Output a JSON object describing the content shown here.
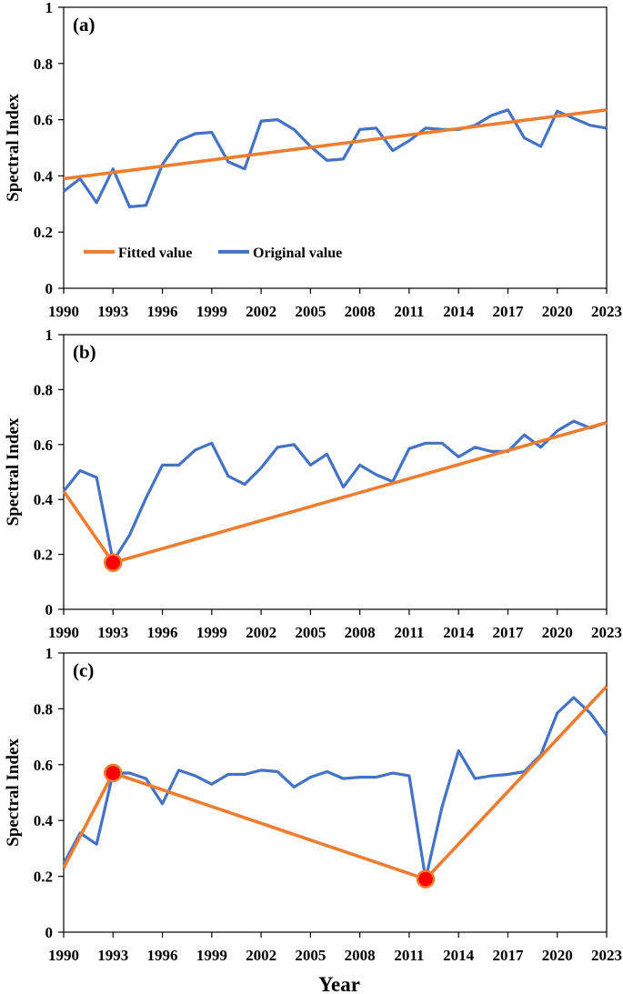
{
  "figure": {
    "x_axis_title": "Year"
  },
  "legend": {
    "fitted_label": "Fitted value",
    "original_label": "Original value"
  },
  "colors": {
    "fitted": "#ED7D31",
    "original": "#4472C4",
    "breakpoint_fill": "#FF0000",
    "breakpoint_stroke": "#ED7D31"
  },
  "chart_data": [
    {
      "type": "line",
      "panel_label": "(a)",
      "ylabel": "Spectral Index",
      "xlabel": "",
      "ylim": [
        0,
        1
      ],
      "yticks": [
        0,
        0.2,
        0.4,
        0.6,
        0.8,
        1
      ],
      "xlim": [
        1990,
        2023
      ],
      "xticks": [
        1990,
        1993,
        1996,
        1999,
        2002,
        2005,
        2008,
        2011,
        2014,
        2017,
        2020,
        2023
      ],
      "legend": true,
      "series": [
        {
          "name": "Original value",
          "x": [
            1990,
            1991,
            1992,
            1993,
            1994,
            1995,
            1996,
            1997,
            1998,
            1999,
            2000,
            2001,
            2002,
            2003,
            2004,
            2005,
            2006,
            2007,
            2008,
            2009,
            2010,
            2011,
            2012,
            2013,
            2014,
            2015,
            2016,
            2017,
            2018,
            2019,
            2020,
            2021,
            2022,
            2023
          ],
          "y": [
            0.345,
            0.39,
            0.305,
            0.425,
            0.29,
            0.295,
            0.44,
            0.525,
            0.55,
            0.555,
            0.45,
            0.425,
            0.595,
            0.6,
            0.565,
            0.505,
            0.455,
            0.46,
            0.565,
            0.57,
            0.49,
            0.525,
            0.57,
            0.565,
            0.565,
            0.58,
            0.615,
            0.635,
            0.535,
            0.505,
            0.63,
            0.605,
            0.58,
            0.57
          ]
        },
        {
          "name": "Fitted value",
          "x": [
            1990,
            2023
          ],
          "y": [
            0.39,
            0.635
          ]
        }
      ],
      "breakpoints": []
    },
    {
      "type": "line",
      "panel_label": "(b)",
      "ylabel": "Spectral Index",
      "xlabel": "",
      "ylim": [
        0,
        1
      ],
      "yticks": [
        0,
        0.2,
        0.4,
        0.6,
        0.8,
        1
      ],
      "xlim": [
        1990,
        2023
      ],
      "xticks": [
        1990,
        1993,
        1996,
        1999,
        2002,
        2005,
        2008,
        2011,
        2014,
        2017,
        2020,
        2023
      ],
      "legend": false,
      "series": [
        {
          "name": "Original value",
          "x": [
            1990,
            1991,
            1992,
            1993,
            1994,
            1995,
            1996,
            1997,
            1998,
            1999,
            2000,
            2001,
            2002,
            2003,
            2004,
            2005,
            2006,
            2007,
            2008,
            2009,
            2010,
            2011,
            2012,
            2013,
            2014,
            2015,
            2016,
            2017,
            2018,
            2019,
            2020,
            2021,
            2022,
            2023
          ],
          "y": [
            0.43,
            0.505,
            0.48,
            0.175,
            0.27,
            0.405,
            0.525,
            0.525,
            0.58,
            0.605,
            0.485,
            0.455,
            0.515,
            0.59,
            0.6,
            0.525,
            0.565,
            0.445,
            0.525,
            0.49,
            0.465,
            0.585,
            0.605,
            0.605,
            0.555,
            0.59,
            0.575,
            0.575,
            0.635,
            0.59,
            0.65,
            0.685,
            0.66,
            0.68
          ]
        },
        {
          "name": "Fitted value",
          "x": [
            1990,
            1993,
            2023
          ],
          "y": [
            0.43,
            0.17,
            0.68
          ]
        }
      ],
      "breakpoints": [
        {
          "x": 1993,
          "y": 0.17
        }
      ]
    },
    {
      "type": "line",
      "panel_label": "(c)",
      "ylabel": "Spectral Index",
      "xlabel": "Year",
      "ylim": [
        0,
        1
      ],
      "yticks": [
        0,
        0.2,
        0.4,
        0.6,
        0.8,
        1
      ],
      "xlim": [
        1990,
        2023
      ],
      "xticks": [
        1990,
        1993,
        1996,
        1999,
        2002,
        2005,
        2008,
        2011,
        2014,
        2017,
        2020,
        2023
      ],
      "legend": false,
      "series": [
        {
          "name": "Original value",
          "x": [
            1990,
            1991,
            1992,
            1993,
            1994,
            1995,
            1996,
            1997,
            1998,
            1999,
            2000,
            2001,
            2002,
            2003,
            2004,
            2005,
            2006,
            2007,
            2008,
            2009,
            2010,
            2011,
            2012,
            2013,
            2014,
            2015,
            2016,
            2017,
            2018,
            2019,
            2020,
            2021,
            2022,
            2023
          ],
          "y": [
            0.245,
            0.355,
            0.315,
            0.57,
            0.57,
            0.55,
            0.46,
            0.58,
            0.56,
            0.53,
            0.565,
            0.565,
            0.58,
            0.575,
            0.52,
            0.555,
            0.575,
            0.55,
            0.555,
            0.555,
            0.57,
            0.56,
            0.19,
            0.45,
            0.65,
            0.55,
            0.56,
            0.565,
            0.575,
            0.635,
            0.785,
            0.84,
            0.785,
            0.705
          ]
        },
        {
          "name": "Fitted value",
          "x": [
            1990,
            1993,
            2012,
            2023
          ],
          "y": [
            0.23,
            0.57,
            0.19,
            0.88
          ]
        }
      ],
      "breakpoints": [
        {
          "x": 1993,
          "y": 0.57
        },
        {
          "x": 2012,
          "y": 0.19
        }
      ]
    }
  ]
}
